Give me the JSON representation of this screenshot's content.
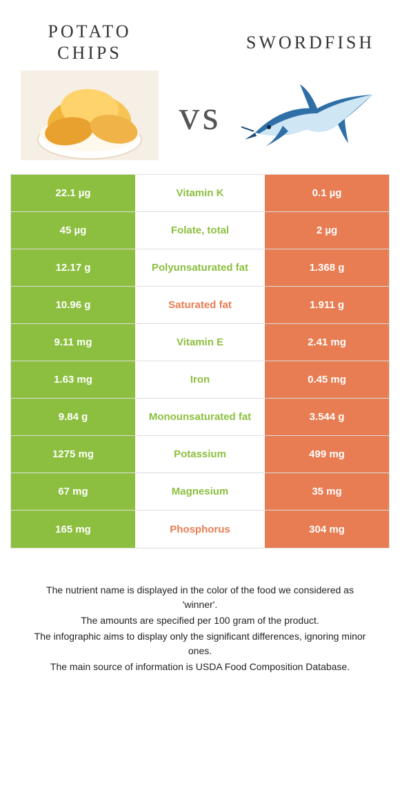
{
  "colors": {
    "food1": "#8cbf3f",
    "food2": "#e87c52",
    "border": "#dddddd",
    "bg": "#ffffff",
    "text": "#333333"
  },
  "food1": {
    "title": "Potato chips"
  },
  "food2": {
    "title": "Swordfish"
  },
  "vs": "vs",
  "rows": [
    {
      "left": "22.1 µg",
      "mid": "Vitamin K",
      "right": "0.1 µg",
      "winner": "food1"
    },
    {
      "left": "45 µg",
      "mid": "Folate, total",
      "right": "2 µg",
      "winner": "food1"
    },
    {
      "left": "12.17 g",
      "mid": "Polyunsaturated fat",
      "right": "1.368 g",
      "winner": "food1"
    },
    {
      "left": "10.96 g",
      "mid": "Saturated fat",
      "right": "1.911 g",
      "winner": "food2"
    },
    {
      "left": "9.11 mg",
      "mid": "Vitamin E",
      "right": "2.41 mg",
      "winner": "food1"
    },
    {
      "left": "1.63 mg",
      "mid": "Iron",
      "right": "0.45 mg",
      "winner": "food1"
    },
    {
      "left": "9.84 g",
      "mid": "Monounsaturated fat",
      "right": "3.544 g",
      "winner": "food1"
    },
    {
      "left": "1275 mg",
      "mid": "Potassium",
      "right": "499 mg",
      "winner": "food1"
    },
    {
      "left": "67 mg",
      "mid": "Magnesium",
      "right": "35 mg",
      "winner": "food1"
    },
    {
      "left": "165 mg",
      "mid": "Phosphorus",
      "right": "304 mg",
      "winner": "food2"
    }
  ],
  "footer": {
    "l1": "The nutrient name is displayed in the color of the food we considered as 'winner'.",
    "l2": "The amounts are specified per 100 gram of the product.",
    "l3": "The infographic aims to display only the significant differences, ignoring minor ones.",
    "l4": "The main source of information is USDA Food Composition Database."
  }
}
